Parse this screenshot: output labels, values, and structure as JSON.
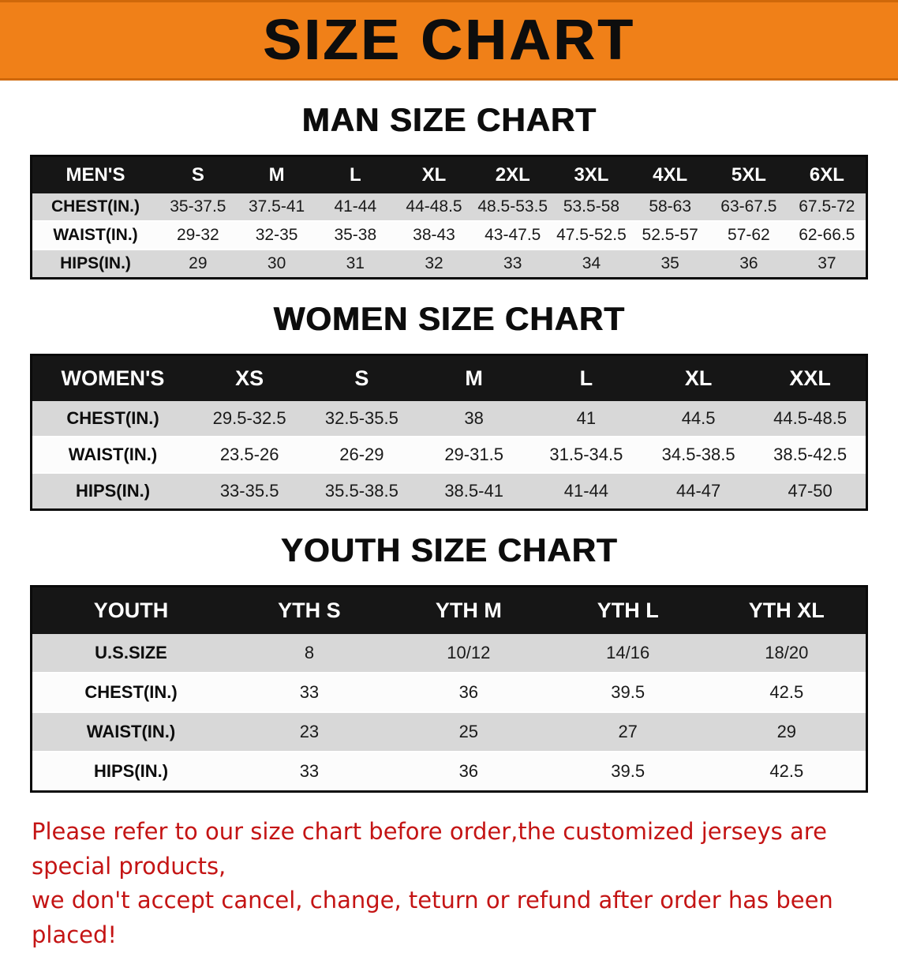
{
  "banner": {
    "title": "SIZE CHART",
    "bg_color": "#f08018",
    "text_color": "#0d0d0d"
  },
  "chart_data": [
    {
      "type": "table",
      "title": "MAN SIZE CHART",
      "header": [
        "MEN'S",
        "S",
        "M",
        "L",
        "XL",
        "2XL",
        "3XL",
        "4XL",
        "5XL",
        "6XL"
      ],
      "rows": [
        [
          "CHEST(IN.)",
          "35-37.5",
          "37.5-41",
          "41-44",
          "44-48.5",
          "48.5-53.5",
          "53.5-58",
          "58-63",
          "63-67.5",
          "67.5-72"
        ],
        [
          "WAIST(IN.)",
          "29-32",
          "32-35",
          "35-38",
          "38-43",
          "43-47.5",
          "47.5-52.5",
          "52.5-57",
          "57-62",
          "62-66.5"
        ],
        [
          "HIPS(IN.)",
          "29",
          "30",
          "31",
          "32",
          "33",
          "34",
          "35",
          "36",
          "37"
        ]
      ]
    },
    {
      "type": "table",
      "title": "WOMEN SIZE CHART",
      "header": [
        "WOMEN'S",
        "XS",
        "S",
        "M",
        "L",
        "XL",
        "XXL"
      ],
      "rows": [
        [
          "CHEST(IN.)",
          "29.5-32.5",
          "32.5-35.5",
          "38",
          "41",
          "44.5",
          "44.5-48.5"
        ],
        [
          "WAIST(IN.)",
          "23.5-26",
          "26-29",
          "29-31.5",
          "31.5-34.5",
          "34.5-38.5",
          "38.5-42.5"
        ],
        [
          "HIPS(IN.)",
          "33-35.5",
          "35.5-38.5",
          "38.5-41",
          "41-44",
          "44-47",
          "47-50"
        ]
      ]
    },
    {
      "type": "table",
      "title": "YOUTH SIZE CHART",
      "header": [
        "YOUTH",
        "YTH S",
        "YTH M",
        "YTH L",
        "YTH XL"
      ],
      "rows": [
        [
          "U.S.SIZE",
          "8",
          "10/12",
          "14/16",
          "18/20"
        ],
        [
          "CHEST(IN.)",
          "33",
          "36",
          "39.5",
          "42.5"
        ],
        [
          "WAIST(IN.)",
          "23",
          "25",
          "27",
          "29"
        ],
        [
          "HIPS(IN.)",
          "33",
          "36",
          "39.5",
          "42.5"
        ]
      ]
    }
  ],
  "disclaimer": {
    "line1": "Please refer to our size chart before order,the customized jerseys are special products,",
    "line2": "we don't accept cancel, change, teturn or refund after order has been placed!",
    "color": "#c41414"
  }
}
